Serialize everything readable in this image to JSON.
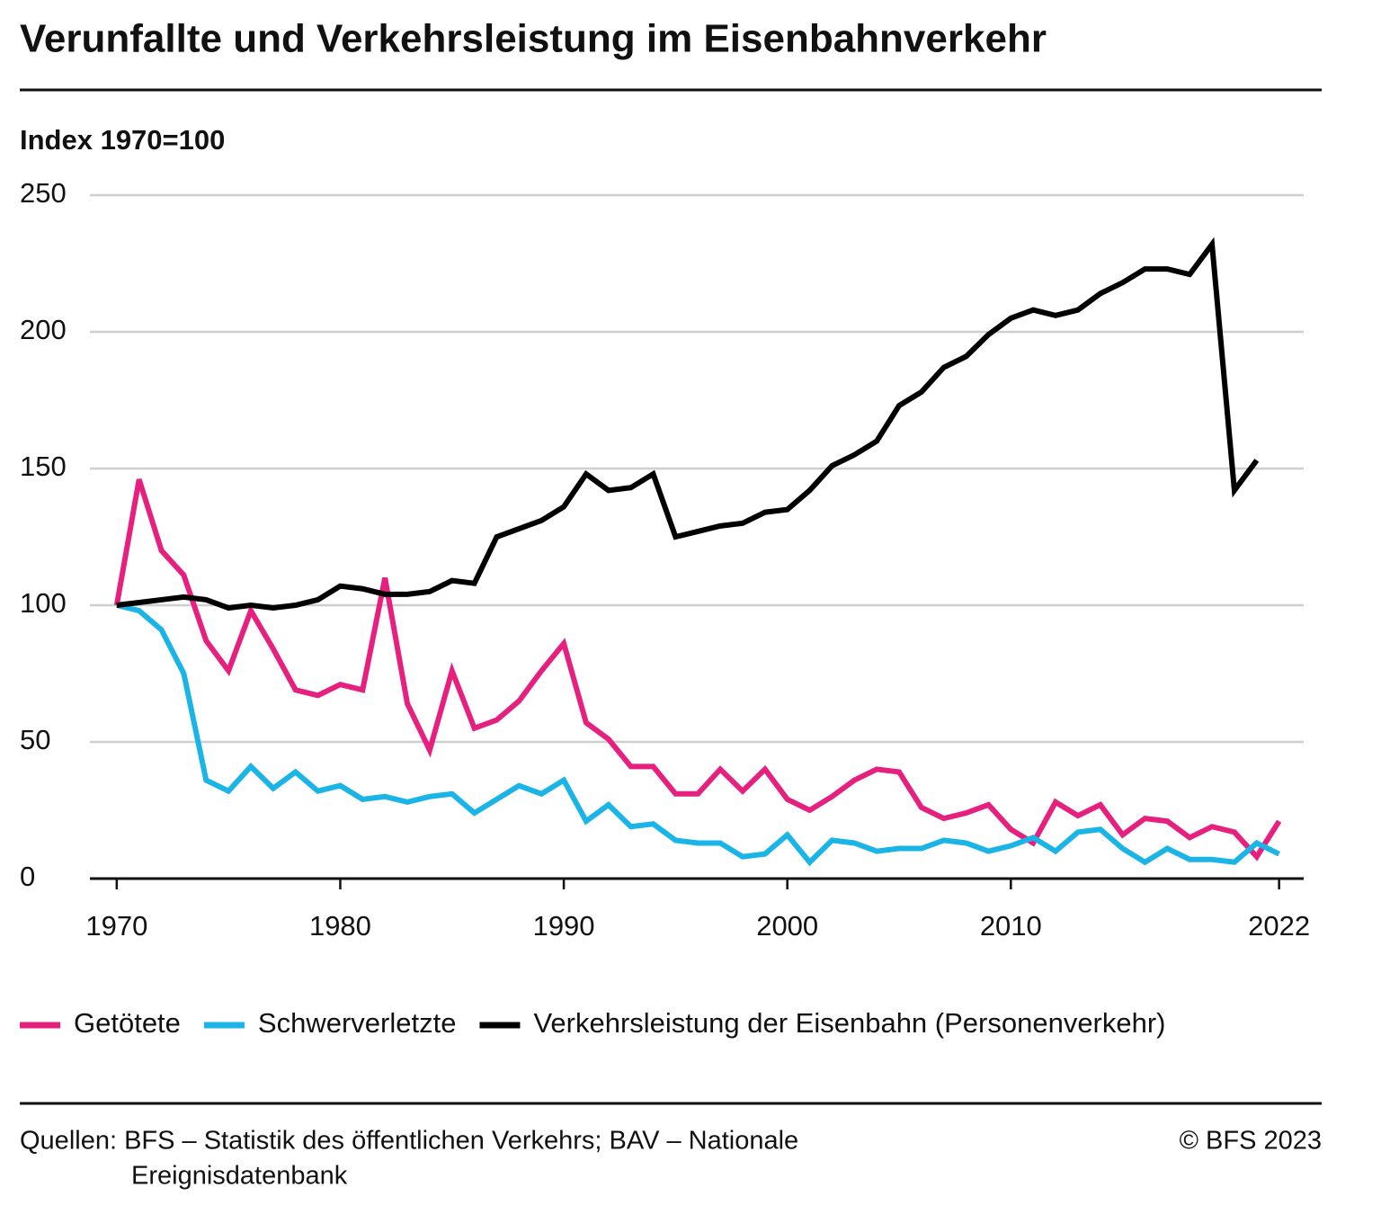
{
  "chart_data": {
    "type": "line",
    "title": "Verunfallte und Verkehrsleistung im Eisenbahnverkehr",
    "subtitle": "Index 1970=100",
    "x": [
      1970,
      1971,
      1972,
      1973,
      1974,
      1975,
      1976,
      1977,
      1978,
      1979,
      1980,
      1981,
      1982,
      1983,
      1984,
      1985,
      1986,
      1987,
      1988,
      1989,
      1990,
      1991,
      1992,
      1993,
      1994,
      1995,
      1996,
      1997,
      1998,
      1999,
      2000,
      2001,
      2002,
      2003,
      2004,
      2005,
      2006,
      2007,
      2008,
      2009,
      2010,
      2011,
      2012,
      2013,
      2014,
      2015,
      2016,
      2017,
      2018,
      2019,
      2020,
      2021,
      2022
    ],
    "series": [
      {
        "name": "Getötete",
        "color": "#e6207f",
        "values": [
          100,
          146,
          120,
          111,
          87,
          76,
          98,
          84,
          69,
          67,
          71,
          69,
          110,
          64,
          47,
          76,
          55,
          58,
          65,
          76,
          86,
          57,
          51,
          41,
          41,
          31,
          31,
          40,
          32,
          40,
          29,
          25,
          30,
          36,
          40,
          39,
          26,
          22,
          24,
          27,
          18,
          13,
          28,
          23,
          27,
          16,
          22,
          21,
          15,
          19,
          17,
          8,
          21
        ]
      },
      {
        "name": "Schwerverletzte",
        "color": "#1ab4e6",
        "values": [
          100,
          98,
          91,
          75,
          36,
          32,
          41,
          33,
          39,
          32,
          34,
          29,
          30,
          28,
          30,
          31,
          24,
          29,
          34,
          31,
          36,
          21,
          27,
          19,
          20,
          14,
          13,
          13,
          8,
          9,
          16,
          6,
          14,
          13,
          10,
          11,
          11,
          14,
          13,
          10,
          12,
          15,
          10,
          17,
          18,
          11,
          6,
          11,
          7,
          7,
          6,
          13,
          9
        ]
      },
      {
        "name": "Verkehrsleistung der Eisenbahn (Personenverkehr)",
        "color": "#000000",
        "values": [
          100,
          101,
          102,
          103,
          102,
          99,
          100,
          99,
          100,
          102,
          107,
          106,
          104,
          104,
          105,
          109,
          108,
          125,
          128,
          131,
          136,
          148,
          142,
          143,
          148,
          125,
          127,
          129,
          130,
          134,
          135,
          142,
          151,
          155,
          160,
          173,
          178,
          187,
          191,
          199,
          205,
          208,
          206,
          208,
          214,
          218,
          223,
          223,
          221,
          232,
          142,
          153,
          null
        ]
      }
    ],
    "xlim": [
      1968.8,
      2023.1
    ],
    "xticks": [
      1970,
      1980,
      1990,
      2000,
      2010,
      2022
    ],
    "ylim": [
      0,
      250
    ],
    "yticks": [
      0,
      50,
      100,
      150,
      200,
      250
    ],
    "grid": true,
    "source": [
      "Quellen: BFS – Statistik des öffentlichen Verkehrs; BAV – Nationale",
      "Ereignisdatenbank"
    ],
    "copyright": "© BFS 2023"
  }
}
